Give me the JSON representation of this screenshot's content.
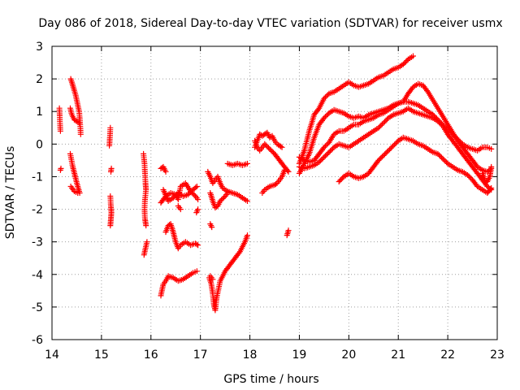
{
  "chart_data": {
    "type": "scatter",
    "title": "Day 086 of 2018, Sidereal Day-to-day VTEC variation (SDTVAR) for receiver usmx",
    "xlabel": "GPS time / hours",
    "ylabel": "SDTVAR / TECUs",
    "xlim": [
      14,
      23
    ],
    "ylim": [
      -6,
      3
    ],
    "xticks": [
      "14",
      "15",
      "16",
      "17",
      "18",
      "19",
      "20",
      "21",
      "22",
      "23"
    ],
    "yticks": [
      "-6",
      "-5",
      "-4",
      "-3",
      "-2",
      "-1",
      "0",
      "1",
      "2",
      "3"
    ],
    "grid": true,
    "marker": "+",
    "color": "#ff0000",
    "tracks": [
      [
        [
          14.15,
          1.1
        ],
        [
          14.16,
          0.7
        ],
        [
          14.17,
          0.4
        ]
      ],
      [
        [
          14.17,
          -0.8
        ],
        [
          14.18,
          -0.75
        ]
      ],
      [
        [
          14.38,
          2.0
        ],
        [
          14.42,
          1.8
        ],
        [
          14.48,
          1.5
        ],
        [
          14.52,
          1.2
        ],
        [
          14.55,
          1.0
        ],
        [
          14.57,
          0.6
        ],
        [
          14.58,
          0.3
        ]
      ],
      [
        [
          14.37,
          1.1
        ],
        [
          14.4,
          0.9
        ],
        [
          14.45,
          0.75
        ],
        [
          14.5,
          0.7
        ],
        [
          14.55,
          0.65
        ]
      ],
      [
        [
          14.37,
          -0.3
        ],
        [
          14.42,
          -0.7
        ],
        [
          14.47,
          -1.0
        ],
        [
          14.52,
          -1.3
        ],
        [
          14.56,
          -1.5
        ]
      ],
      [
        [
          14.38,
          -1.3
        ],
        [
          14.45,
          -1.45
        ],
        [
          14.52,
          -1.5
        ]
      ],
      [
        [
          15.18,
          0.5
        ],
        [
          15.17,
          0.2
        ],
        [
          15.16,
          -0.05
        ]
      ],
      [
        [
          15.2,
          -0.75
        ],
        [
          15.19,
          -0.85
        ]
      ],
      [
        [
          15.18,
          -1.6
        ],
        [
          15.19,
          -1.9
        ],
        [
          15.2,
          -2.1
        ],
        [
          15.19,
          -2.3
        ],
        [
          15.18,
          -2.5
        ]
      ],
      [
        [
          15.85,
          -0.3
        ],
        [
          15.87,
          -0.6
        ],
        [
          15.88,
          -0.9
        ],
        [
          15.89,
          -1.2
        ],
        [
          15.9,
          -1.4
        ],
        [
          15.88,
          -1.7
        ],
        [
          15.87,
          -2.0
        ],
        [
          15.88,
          -2.3
        ],
        [
          15.9,
          -2.5
        ]
      ],
      [
        [
          15.86,
          -3.4
        ],
        [
          15.89,
          -3.2
        ],
        [
          15.92,
          -3.0
        ]
      ],
      [
        [
          16.2,
          -0.75
        ],
        [
          16.25,
          -0.7
        ],
        [
          16.3,
          -0.85
        ]
      ],
      [
        [
          16.2,
          -1.8
        ],
        [
          16.3,
          -1.6
        ],
        [
          16.4,
          -1.5
        ],
        [
          16.5,
          -1.55
        ],
        [
          16.55,
          -1.7
        ],
        [
          16.6,
          -1.3
        ],
        [
          16.7,
          -1.2
        ],
        [
          16.8,
          -1.45
        ],
        [
          16.9,
          -1.6
        ],
        [
          16.95,
          -1.7
        ]
      ],
      [
        [
          16.25,
          -1.4
        ],
        [
          16.35,
          -1.75
        ],
        [
          16.45,
          -1.65
        ],
        [
          16.55,
          -1.5
        ],
        [
          16.65,
          -1.6
        ],
        [
          16.75,
          -1.55
        ],
        [
          16.85,
          -1.4
        ],
        [
          16.93,
          -1.3
        ]
      ],
      [
        [
          16.55,
          -1.9
        ],
        [
          16.6,
          -2.0
        ]
      ],
      [
        [
          16.92,
          -2.1
        ],
        [
          16.95,
          -2.0
        ]
      ],
      [
        [
          16.2,
          -4.65
        ],
        [
          16.25,
          -4.3
        ],
        [
          16.3,
          -4.2
        ],
        [
          16.35,
          -4.05
        ],
        [
          16.45,
          -4.1
        ],
        [
          16.55,
          -4.2
        ],
        [
          16.65,
          -4.15
        ],
        [
          16.75,
          -4.05
        ],
        [
          16.85,
          -3.95
        ],
        [
          16.93,
          -3.9
        ]
      ],
      [
        [
          16.3,
          -2.7
        ],
        [
          16.35,
          -2.5
        ],
        [
          16.4,
          -2.45
        ],
        [
          16.45,
          -2.7
        ],
        [
          16.5,
          -3.0
        ],
        [
          16.55,
          -3.2
        ],
        [
          16.6,
          -3.1
        ],
        [
          16.7,
          -3.0
        ],
        [
          16.8,
          -3.1
        ],
        [
          16.9,
          -3.05
        ],
        [
          16.95,
          -3.1
        ]
      ],
      [
        [
          17.15,
          -0.85
        ],
        [
          17.2,
          -1.0
        ],
        [
          17.25,
          -1.2
        ],
        [
          17.3,
          -1.1
        ],
        [
          17.35,
          -1.0
        ],
        [
          17.4,
          -1.2
        ],
        [
          17.45,
          -1.35
        ],
        [
          17.55,
          -1.45
        ],
        [
          17.65,
          -1.5
        ],
        [
          17.75,
          -1.55
        ],
        [
          17.85,
          -1.65
        ],
        [
          17.95,
          -1.75
        ]
      ],
      [
        [
          17.2,
          -1.5
        ],
        [
          17.25,
          -1.75
        ],
        [
          17.3,
          -1.95
        ],
        [
          17.35,
          -1.9
        ],
        [
          17.4,
          -1.75
        ],
        [
          17.5,
          -1.6
        ],
        [
          17.55,
          -1.5
        ]
      ],
      [
        [
          17.2,
          -2.45
        ],
        [
          17.23,
          -2.55
        ]
      ],
      [
        [
          17.18,
          -4.1
        ],
        [
          17.22,
          -4.3
        ],
        [
          17.25,
          -4.6
        ],
        [
          17.27,
          -4.9
        ],
        [
          17.3,
          -5.1
        ],
        [
          17.33,
          -4.7
        ],
        [
          17.4,
          -4.2
        ],
        [
          17.5,
          -3.9
        ],
        [
          17.6,
          -3.7
        ],
        [
          17.7,
          -3.5
        ],
        [
          17.8,
          -3.3
        ],
        [
          17.9,
          -3.0
        ],
        [
          17.95,
          -2.8
        ]
      ],
      [
        [
          17.2,
          -4.05
        ],
        [
          17.25,
          -4.15
        ]
      ],
      [
        [
          17.55,
          -0.6
        ],
        [
          17.65,
          -0.65
        ],
        [
          17.75,
          -0.6
        ],
        [
          17.85,
          -0.65
        ],
        [
          17.95,
          -0.6
        ]
      ],
      [
        [
          18.1,
          -0.1
        ],
        [
          18.15,
          0.1
        ],
        [
          18.2,
          0.3
        ],
        [
          18.25,
          0.25
        ],
        [
          18.3,
          0.3
        ],
        [
          18.35,
          0.35
        ],
        [
          18.4,
          0.2
        ],
        [
          18.45,
          0.25
        ],
        [
          18.5,
          0.1
        ],
        [
          18.55,
          0.0
        ],
        [
          18.6,
          -0.05
        ],
        [
          18.65,
          -0.1
        ]
      ],
      [
        [
          18.1,
          0.1
        ],
        [
          18.15,
          -0.1
        ],
        [
          18.2,
          -0.2
        ],
        [
          18.25,
          -0.1
        ],
        [
          18.3,
          0.0
        ],
        [
          18.4,
          -0.15
        ],
        [
          18.5,
          -0.3
        ],
        [
          18.6,
          -0.5
        ],
        [
          18.7,
          -0.7
        ],
        [
          18.78,
          -0.85
        ]
      ],
      [
        [
          18.25,
          -1.5
        ],
        [
          18.3,
          -1.4
        ],
        [
          18.4,
          -1.3
        ],
        [
          18.5,
          -1.25
        ],
        [
          18.55,
          -1.2
        ],
        [
          18.6,
          -1.1
        ],
        [
          18.65,
          -1.0
        ],
        [
          18.7,
          -0.8
        ]
      ],
      [
        [
          18.75,
          -2.8
        ],
        [
          18.78,
          -2.65
        ]
      ],
      [
        [
          19.0,
          -0.6
        ],
        [
          19.1,
          -0.2
        ],
        [
          19.2,
          0.4
        ],
        [
          19.3,
          0.9
        ],
        [
          19.4,
          1.1
        ],
        [
          19.5,
          1.4
        ],
        [
          19.6,
          1.55
        ],
        [
          19.7,
          1.6
        ],
        [
          19.8,
          1.7
        ],
        [
          19.9,
          1.8
        ],
        [
          20.0,
          1.9
        ],
        [
          20.1,
          1.8
        ],
        [
          20.2,
          1.75
        ],
        [
          20.3,
          1.8
        ],
        [
          20.4,
          1.85
        ],
        [
          20.5,
          1.95
        ],
        [
          20.6,
          2.05
        ],
        [
          20.7,
          2.1
        ],
        [
          20.8,
          2.2
        ],
        [
          20.9,
          2.3
        ],
        [
          21.0,
          2.35
        ],
        [
          21.1,
          2.45
        ],
        [
          21.2,
          2.6
        ],
        [
          21.3,
          2.7
        ]
      ],
      [
        [
          19.0,
          -0.9
        ],
        [
          19.1,
          -0.6
        ],
        [
          19.2,
          -0.3
        ],
        [
          19.3,
          0.2
        ],
        [
          19.4,
          0.6
        ],
        [
          19.5,
          0.8
        ],
        [
          19.6,
          0.95
        ],
        [
          19.7,
          1.05
        ],
        [
          19.8,
          1.0
        ],
        [
          19.9,
          0.95
        ],
        [
          20.0,
          0.85
        ],
        [
          20.1,
          0.8
        ],
        [
          20.2,
          0.85
        ],
        [
          20.3,
          0.8
        ],
        [
          20.4,
          0.9
        ],
        [
          20.5,
          0.95
        ],
        [
          20.6,
          1.0
        ],
        [
          20.7,
          1.05
        ],
        [
          20.8,
          1.1
        ],
        [
          20.9,
          1.2
        ],
        [
          21.0,
          1.25
        ],
        [
          21.1,
          1.3
        ],
        [
          21.2,
          1.55
        ],
        [
          21.3,
          1.75
        ],
        [
          21.4,
          1.85
        ],
        [
          21.5,
          1.8
        ],
        [
          21.6,
          1.6
        ],
        [
          21.7,
          1.35
        ],
        [
          21.8,
          1.1
        ],
        [
          21.9,
          0.85
        ],
        [
          22.0,
          0.6
        ],
        [
          22.1,
          0.35
        ],
        [
          22.2,
          0.1
        ],
        [
          22.3,
          -0.1
        ],
        [
          22.4,
          -0.3
        ],
        [
          22.5,
          -0.5
        ],
        [
          22.6,
          -0.7
        ],
        [
          22.7,
          -0.8
        ],
        [
          22.8,
          -0.85
        ],
        [
          22.88,
          -0.75
        ]
      ],
      [
        [
          19.0,
          -0.4
        ],
        [
          19.1,
          -0.5
        ],
        [
          19.2,
          -0.55
        ],
        [
          19.3,
          -0.5
        ],
        [
          19.4,
          -0.3
        ],
        [
          19.5,
          -0.1
        ],
        [
          19.6,
          0.05
        ],
        [
          19.7,
          0.3
        ],
        [
          19.8,
          0.4
        ],
        [
          19.9,
          0.4
        ],
        [
          20.0,
          0.5
        ],
        [
          20.1,
          0.6
        ],
        [
          20.2,
          0.6
        ],
        [
          20.3,
          0.7
        ],
        [
          20.4,
          0.75
        ],
        [
          20.5,
          0.8
        ],
        [
          20.6,
          0.9
        ],
        [
          20.7,
          0.95
        ],
        [
          20.8,
          1.05
        ],
        [
          20.9,
          1.15
        ],
        [
          21.0,
          1.25
        ],
        [
          21.1,
          1.3
        ],
        [
          21.2,
          1.3
        ],
        [
          21.3,
          1.25
        ],
        [
          21.4,
          1.2
        ],
        [
          21.5,
          1.1
        ],
        [
          21.6,
          1.0
        ],
        [
          21.7,
          0.9
        ],
        [
          21.8,
          0.75
        ],
        [
          21.9,
          0.6
        ],
        [
          22.0,
          0.45
        ],
        [
          22.1,
          0.3
        ],
        [
          22.2,
          0.15
        ],
        [
          22.3,
          0.0
        ],
        [
          22.4,
          -0.1
        ],
        [
          22.5,
          -0.15
        ],
        [
          22.6,
          -0.2
        ],
        [
          22.7,
          -0.1
        ],
        [
          22.8,
          -0.1
        ],
        [
          22.88,
          -0.15
        ]
      ],
      [
        [
          19.0,
          -0.7
        ],
        [
          19.1,
          -0.75
        ],
        [
          19.2,
          -0.7
        ],
        [
          19.3,
          -0.65
        ],
        [
          19.4,
          -0.55
        ],
        [
          19.5,
          -0.4
        ],
        [
          19.6,
          -0.25
        ],
        [
          19.7,
          -0.1
        ],
        [
          19.8,
          0.0
        ],
        [
          19.9,
          -0.05
        ],
        [
          20.0,
          -0.1
        ],
        [
          20.1,
          0.0
        ],
        [
          20.2,
          0.1
        ],
        [
          20.3,
          0.2
        ],
        [
          20.4,
          0.3
        ],
        [
          20.5,
          0.4
        ],
        [
          20.6,
          0.5
        ],
        [
          20.7,
          0.65
        ],
        [
          20.8,
          0.8
        ],
        [
          20.9,
          0.9
        ],
        [
          21.0,
          0.95
        ],
        [
          21.1,
          1.0
        ],
        [
          21.2,
          1.1
        ],
        [
          21.3,
          1.0
        ],
        [
          21.4,
          0.95
        ],
        [
          21.5,
          0.9
        ],
        [
          21.6,
          0.85
        ],
        [
          21.7,
          0.8
        ],
        [
          21.8,
          0.7
        ],
        [
          21.9,
          0.55
        ],
        [
          22.0,
          0.3
        ],
        [
          22.1,
          0.1
        ],
        [
          22.2,
          -0.1
        ],
        [
          22.3,
          -0.3
        ],
        [
          22.4,
          -0.5
        ],
        [
          22.5,
          -0.7
        ],
        [
          22.6,
          -0.9
        ],
        [
          22.7,
          -1.1
        ],
        [
          22.8,
          -1.3
        ],
        [
          22.88,
          -1.4
        ]
      ],
      [
        [
          19.8,
          -1.15
        ],
        [
          19.9,
          -1.0
        ],
        [
          20.0,
          -0.9
        ],
        [
          20.1,
          -1.0
        ],
        [
          20.2,
          -1.05
        ],
        [
          20.3,
          -1.0
        ],
        [
          20.4,
          -0.9
        ],
        [
          20.5,
          -0.7
        ],
        [
          20.6,
          -0.5
        ],
        [
          20.7,
          -0.35
        ],
        [
          20.8,
          -0.2
        ],
        [
          20.9,
          -0.05
        ],
        [
          21.0,
          0.1
        ],
        [
          21.1,
          0.2
        ],
        [
          21.2,
          0.15
        ],
        [
          21.3,
          0.1
        ],
        [
          21.4,
          0.0
        ],
        [
          21.5,
          -0.05
        ],
        [
          21.6,
          -0.15
        ],
        [
          21.7,
          -0.25
        ],
        [
          21.8,
          -0.3
        ],
        [
          21.9,
          -0.45
        ],
        [
          22.0,
          -0.6
        ],
        [
          22.1,
          -0.7
        ],
        [
          22.2,
          -0.8
        ],
        [
          22.3,
          -0.85
        ],
        [
          22.4,
          -0.95
        ],
        [
          22.5,
          -1.1
        ],
        [
          22.6,
          -1.3
        ],
        [
          22.7,
          -1.4
        ],
        [
          22.8,
          -1.5
        ],
        [
          22.88,
          -1.35
        ]
      ],
      [
        [
          22.7,
          -0.9
        ],
        [
          22.75,
          -1.1
        ],
        [
          22.8,
          -1.15
        ],
        [
          22.85,
          -1.0
        ],
        [
          22.88,
          -0.7
        ]
      ]
    ]
  }
}
